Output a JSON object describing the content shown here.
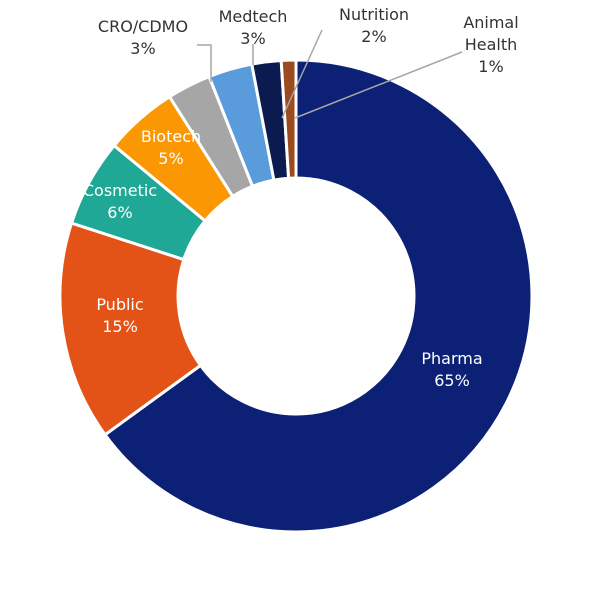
{
  "chart_data": {
    "type": "pie",
    "title": "",
    "categories": [
      "Pharma",
      "Public",
      "Cosmetic",
      "Biotech",
      "CRO/CDMO",
      "Medtech",
      "Nutrition",
      "Animal Health"
    ],
    "values": [
      65,
      15,
      6,
      5,
      3,
      3,
      2,
      1
    ],
    "value_labels": [
      "65%",
      "15%",
      "6%",
      "5%",
      "3%",
      "3%",
      "2%",
      "1%"
    ],
    "colors": [
      "#0c2175",
      "#e35216",
      "#1fa896",
      "#fb9702",
      "#a6a6a6",
      "#5a9bdb",
      "#0b1a4f",
      "#9c4a1f"
    ],
    "label_lines": [
      [
        "Pharma"
      ],
      [
        "Public"
      ],
      [
        "Cosmetic"
      ],
      [
        "Biotech"
      ],
      [
        "CRO/CDMO"
      ],
      [
        "Medtech"
      ],
      [
        "Nutrition"
      ],
      [
        "Animal",
        "Health"
      ]
    ]
  }
}
